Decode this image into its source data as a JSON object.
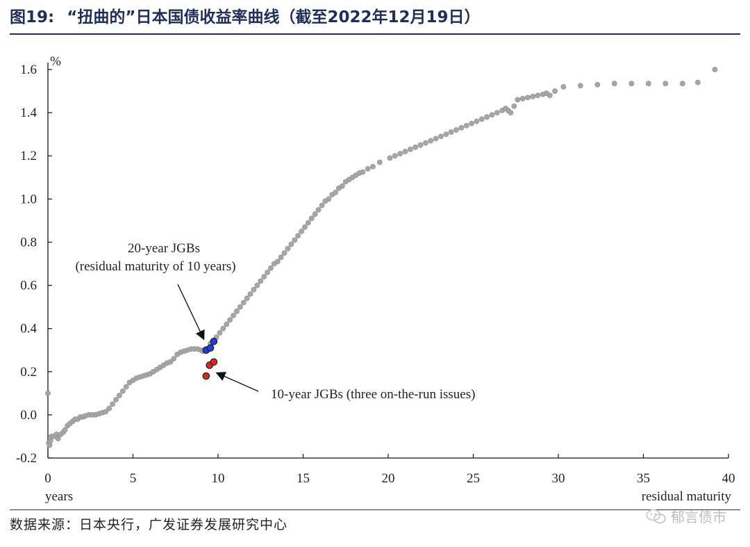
{
  "header": {
    "figure_label": "图19:",
    "title": "“扭曲的”日本国债收益率曲线（截至2022年12月19日）"
  },
  "footer": {
    "source": "数据来源：日本央行，广发证券发展研究中心",
    "watermark": "郁言债市"
  },
  "chart_data": {
    "type": "scatter",
    "title": "",
    "ylabel": "%",
    "xlabel_left": "years",
    "xlabel_right": "residual maturity",
    "xlim": [
      0,
      40
    ],
    "ylim": [
      -0.2,
      1.6
    ],
    "xticks": [
      "0",
      "5",
      "10",
      "15",
      "20",
      "25",
      "30",
      "35",
      "40"
    ],
    "yticks": [
      "-0.2",
      "0.0",
      "0.2",
      "0.4",
      "0.6",
      "0.8",
      "1.0",
      "1.2",
      "1.4",
      "1.6"
    ],
    "grid": false,
    "colors": {
      "curve": "#a6a6a6",
      "jgb20": "#1f3fd6",
      "jgb10": "#d42a1e"
    },
    "curve_points": [
      [
        0.0,
        0.1
      ],
      [
        0.05,
        -0.13
      ],
      [
        0.1,
        -0.14
      ],
      [
        0.15,
        -0.12
      ],
      [
        0.2,
        -0.1
      ],
      [
        0.35,
        -0.1
      ],
      [
        0.5,
        -0.09
      ],
      [
        0.6,
        -0.11
      ],
      [
        0.75,
        -0.09
      ],
      [
        0.9,
        -0.08
      ],
      [
        1.0,
        -0.07
      ],
      [
        1.15,
        -0.05
      ],
      [
        1.3,
        -0.04
      ],
      [
        1.45,
        -0.03
      ],
      [
        1.6,
        -0.02
      ],
      [
        1.75,
        -0.02
      ],
      [
        1.9,
        -0.01
      ],
      [
        2.05,
        -0.01
      ],
      [
        2.2,
        -0.005
      ],
      [
        2.4,
        0.0
      ],
      [
        2.6,
        0.0
      ],
      [
        2.8,
        0.0
      ],
      [
        3.0,
        0.005
      ],
      [
        3.2,
        0.01
      ],
      [
        3.4,
        0.015
      ],
      [
        3.6,
        0.03
      ],
      [
        3.8,
        0.05
      ],
      [
        4.0,
        0.07
      ],
      [
        4.2,
        0.09
      ],
      [
        4.4,
        0.11
      ],
      [
        4.6,
        0.13
      ],
      [
        4.8,
        0.15
      ],
      [
        5.0,
        0.16
      ],
      [
        5.2,
        0.17
      ],
      [
        5.4,
        0.175
      ],
      [
        5.6,
        0.18
      ],
      [
        5.8,
        0.185
      ],
      [
        6.0,
        0.19
      ],
      [
        6.2,
        0.2
      ],
      [
        6.4,
        0.21
      ],
      [
        6.6,
        0.22
      ],
      [
        6.8,
        0.23
      ],
      [
        7.0,
        0.24
      ],
      [
        7.2,
        0.245
      ],
      [
        7.4,
        0.26
      ],
      [
        7.6,
        0.28
      ],
      [
        7.8,
        0.29
      ],
      [
        8.0,
        0.295
      ],
      [
        8.2,
        0.3
      ],
      [
        8.4,
        0.305
      ],
      [
        8.6,
        0.305
      ],
      [
        8.8,
        0.305
      ],
      [
        9.0,
        0.3
      ],
      [
        9.1,
        0.295
      ],
      [
        9.55,
        0.33
      ],
      [
        9.9,
        0.36
      ],
      [
        10.1,
        0.38
      ],
      [
        10.3,
        0.4
      ],
      [
        10.5,
        0.42
      ],
      [
        10.7,
        0.44
      ],
      [
        10.9,
        0.46
      ],
      [
        11.1,
        0.48
      ],
      [
        11.3,
        0.5
      ],
      [
        11.5,
        0.52
      ],
      [
        11.7,
        0.54
      ],
      [
        11.9,
        0.56
      ],
      [
        12.1,
        0.58
      ],
      [
        12.3,
        0.6
      ],
      [
        12.5,
        0.62
      ],
      [
        12.7,
        0.64
      ],
      [
        12.9,
        0.66
      ],
      [
        13.1,
        0.68
      ],
      [
        13.3,
        0.7
      ],
      [
        13.5,
        0.71
      ],
      [
        13.7,
        0.73
      ],
      [
        13.9,
        0.75
      ],
      [
        14.1,
        0.77
      ],
      [
        14.3,
        0.79
      ],
      [
        14.5,
        0.81
      ],
      [
        14.7,
        0.83
      ],
      [
        14.9,
        0.85
      ],
      [
        15.1,
        0.87
      ],
      [
        15.3,
        0.89
      ],
      [
        15.5,
        0.91
      ],
      [
        15.7,
        0.93
      ],
      [
        15.9,
        0.95
      ],
      [
        16.1,
        0.97
      ],
      [
        16.3,
        0.99
      ],
      [
        16.5,
        1.0
      ],
      [
        16.7,
        1.02
      ],
      [
        16.9,
        1.03
      ],
      [
        17.1,
        1.05
      ],
      [
        17.3,
        1.06
      ],
      [
        17.5,
        1.08
      ],
      [
        17.7,
        1.09
      ],
      [
        17.9,
        1.1
      ],
      [
        18.1,
        1.11
      ],
      [
        18.3,
        1.12
      ],
      [
        18.5,
        1.125
      ],
      [
        18.8,
        1.14
      ],
      [
        19.1,
        1.15
      ],
      [
        19.5,
        1.17
      ],
      [
        20.1,
        1.19
      ],
      [
        20.4,
        1.2
      ],
      [
        20.7,
        1.21
      ],
      [
        21.0,
        1.22
      ],
      [
        21.3,
        1.23
      ],
      [
        21.6,
        1.24
      ],
      [
        21.9,
        1.25
      ],
      [
        22.2,
        1.26
      ],
      [
        22.5,
        1.27
      ],
      [
        22.8,
        1.28
      ],
      [
        23.1,
        1.29
      ],
      [
        23.4,
        1.3
      ],
      [
        23.7,
        1.31
      ],
      [
        24.0,
        1.32
      ],
      [
        24.3,
        1.33
      ],
      [
        24.6,
        1.34
      ],
      [
        24.9,
        1.35
      ],
      [
        25.2,
        1.36
      ],
      [
        25.5,
        1.37
      ],
      [
        25.8,
        1.38
      ],
      [
        26.1,
        1.39
      ],
      [
        26.4,
        1.4
      ],
      [
        26.7,
        1.41
      ],
      [
        26.9,
        1.42
      ],
      [
        27.05,
        1.41
      ],
      [
        27.2,
        1.4
      ],
      [
        27.4,
        1.43
      ],
      [
        27.6,
        1.46
      ],
      [
        27.9,
        1.465
      ],
      [
        28.2,
        1.47
      ],
      [
        28.5,
        1.475
      ],
      [
        28.8,
        1.48
      ],
      [
        29.1,
        1.485
      ],
      [
        29.3,
        1.49
      ],
      [
        29.5,
        1.48
      ],
      [
        29.8,
        1.5
      ],
      [
        30.3,
        1.52
      ],
      [
        31.3,
        1.525
      ],
      [
        32.3,
        1.53
      ],
      [
        33.3,
        1.535
      ],
      [
        34.3,
        1.535
      ],
      [
        35.3,
        1.535
      ],
      [
        36.3,
        1.535
      ],
      [
        37.3,
        1.535
      ],
      [
        38.2,
        1.54
      ],
      [
        39.2,
        1.6
      ]
    ],
    "series": [
      {
        "label_lines": [
          "20-year JGBs",
          "(residual maturity  of 10 years)"
        ],
        "points": [
          [
            9.3,
            0.3
          ],
          [
            9.55,
            0.31
          ],
          [
            9.75,
            0.34
          ]
        ]
      },
      {
        "label_lines": [
          "10-year JGBs (three on-the-run issues)"
        ],
        "points": [
          [
            9.3,
            0.18
          ],
          [
            9.5,
            0.23
          ],
          [
            9.75,
            0.245
          ]
        ]
      }
    ]
  }
}
